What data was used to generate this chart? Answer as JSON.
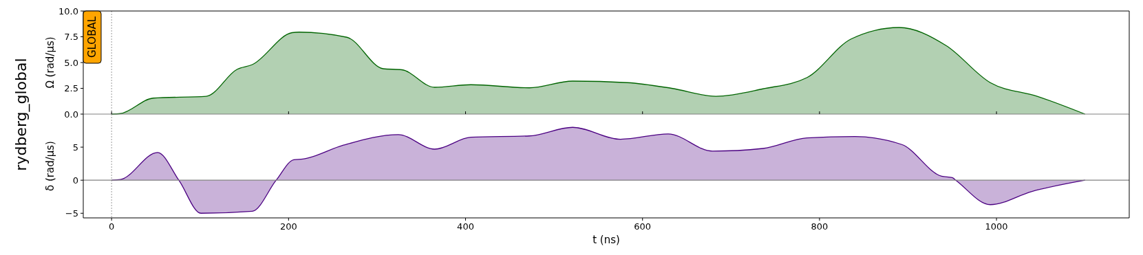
{
  "chart_data": [
    {
      "type": "area",
      "ylabel": "Ω (rad/µs)",
      "annotations": [
        "GLOBAL",
        "rydberg_global"
      ],
      "xlim": [
        -32,
        1150
      ],
      "ylim": [
        0,
        10
      ],
      "xticks": [
        {
          "value": 0,
          "label": null
        },
        {
          "value": 200,
          "label": null
        },
        {
          "value": 400,
          "label": null
        },
        {
          "value": 600,
          "label": null
        },
        {
          "value": 800,
          "label": null
        },
        {
          "value": 1000,
          "label": null
        }
      ],
      "yticks": [
        {
          "value": 0,
          "label": "0.0"
        },
        {
          "value": 2.5,
          "label": "2.5"
        },
        {
          "value": 5,
          "label": "5.0"
        },
        {
          "value": 7.5,
          "label": "7.5"
        },
        {
          "value": 10,
          "label": "10.0"
        }
      ],
      "tick_labels": "y",
      "ref_lines": [
        {
          "axis": "x",
          "value": 0,
          "color": "#808080",
          "line_style": "dotted"
        }
      ],
      "series": [
        {
          "color": "#006400",
          "x": [
            0,
            10,
            47,
            107,
            142,
            159,
            204,
            212,
            266,
            307,
            328,
            365,
            406,
            472,
            521,
            583,
            633,
            683,
            736,
            786,
            836,
            890,
            943,
            993,
            1046,
            1100
          ],
          "values": [
            0,
            0.05,
            1.55,
            1.73,
            4.35,
            4.8,
            7.9,
            7.95,
            7.45,
            4.4,
            4.3,
            2.6,
            2.85,
            2.55,
            3.2,
            3.05,
            2.5,
            1.73,
            2.45,
            3.55,
            7.3,
            8.4,
            6.65,
            3.05,
            1.73,
            0
          ]
        }
      ]
    },
    {
      "type": "area",
      "ylabel": "δ (rad/µs)",
      "xlabel": "t (ns)",
      "xlim": [
        -32,
        1150
      ],
      "ylim": [
        -5.7,
        10
      ],
      "xticks": [
        0,
        200,
        400,
        600,
        800,
        1000
      ],
      "yticks": [
        {
          "value": -5,
          "label": "−5"
        },
        {
          "value": 0,
          "label": "0"
        },
        {
          "value": 5,
          "label": "5"
        }
      ],
      "ref_lines": [
        {
          "axis": "y",
          "value": 0,
          "color": "#808080",
          "line_style": "solid"
        },
        {
          "axis": "x",
          "value": 0,
          "color": "#808080",
          "line_style": "dotted"
        }
      ],
      "series": [
        {
          "color": "#4b0082",
          "x": [
            0,
            10,
            52,
            76,
            101,
            159,
            186,
            206,
            216,
            262,
            324,
            365,
            406,
            472,
            521,
            575,
            629,
            679,
            736,
            786,
            840,
            893,
            938,
            950,
            954,
            993,
            1040,
            1100
          ],
          "values": [
            0,
            0.1,
            4.2,
            0,
            -5.0,
            -4.7,
            0,
            3.1,
            3.2,
            5.3,
            6.9,
            4.7,
            6.5,
            6.7,
            8.0,
            6.2,
            7.0,
            4.4,
            4.8,
            6.4,
            6.6,
            5.4,
            0.6,
            0.4,
            0,
            -3.7,
            -1.7,
            0
          ]
        }
      ]
    }
  ]
}
